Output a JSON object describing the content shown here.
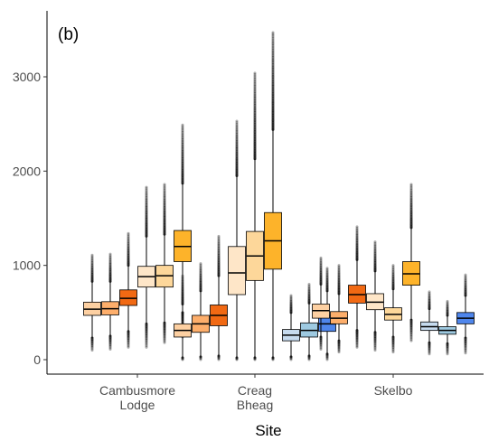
{
  "chart_data": {
    "type": "box",
    "panel_label": "(b)",
    "title": "",
    "xlabel": "Site",
    "ylabel": "",
    "ylim": [
      -80,
      3560
    ],
    "yticks": [
      0,
      1000,
      2000,
      3000
    ],
    "ytick_labels": [
      "0",
      "1000",
      "2000",
      "3000"
    ],
    "grid": false,
    "legend": "none",
    "categories": [
      {
        "label_lines": [
          "Cambusmore",
          "Lodge"
        ]
      },
      {
        "label_lines": [
          "Creag",
          "Bheag"
        ]
      },
      {
        "label_lines": [
          "Skelbo"
        ]
      }
    ],
    "groups": [
      {
        "site": "Cambusmore Lodge",
        "boxes": [
          {
            "color": "#fdd0a2",
            "whisker_low": 230,
            "q1": 470,
            "median": 535,
            "q3": 610,
            "whisker_high": 830,
            "out_low": 100,
            "out_high": 1110
          },
          {
            "color": "#fdae6b",
            "whisker_low": 250,
            "q1": 475,
            "median": 540,
            "q3": 615,
            "whisker_high": 830,
            "out_low": 110,
            "out_high": 1120
          },
          {
            "color": "#f16913",
            "whisker_low": 300,
            "q1": 575,
            "median": 650,
            "q3": 740,
            "whisker_high": 1000,
            "out_low": 130,
            "out_high": 1340
          },
          {
            "color": "#fee6c8",
            "whisker_low": 380,
            "q1": 770,
            "median": 880,
            "q3": 990,
            "whisker_high": 1310,
            "out_low": 130,
            "out_high": 1830
          },
          {
            "color": "#fdd79a",
            "whisker_low": 390,
            "q1": 770,
            "median": 890,
            "q3": 1000,
            "whisker_high": 1330,
            "out_low": 180,
            "out_high": 1860
          },
          {
            "color": "#fdb32a",
            "whisker_low": 500,
            "q1": 1040,
            "median": 1200,
            "q3": 1370,
            "whisker_high": 1870,
            "out_low": 240,
            "out_high": 2490
          }
        ]
      },
      {
        "site": "Creag Bheag",
        "boxes": [
          {
            "color": "#fdd0a2",
            "whisker_low": 20,
            "q1": 240,
            "median": 310,
            "q3": 380,
            "whisker_high": 590,
            "out_low": 0,
            "out_high": 890
          },
          {
            "color": "#fdae6b",
            "whisker_low": 30,
            "q1": 290,
            "median": 380,
            "q3": 470,
            "whisker_high": 730,
            "out_low": 0,
            "out_high": 1020
          },
          {
            "color": "#f16913",
            "whisker_low": 40,
            "q1": 360,
            "median": 470,
            "q3": 580,
            "whisker_high": 890,
            "out_low": 0,
            "out_high": 1310
          },
          {
            "color": "#fee6c8",
            "whisker_low": 20,
            "q1": 690,
            "median": 920,
            "q3": 1200,
            "whisker_high": 1950,
            "out_low": 0,
            "out_high": 2530
          },
          {
            "color": "#fdd79a",
            "whisker_low": 20,
            "q1": 840,
            "median": 1100,
            "q3": 1360,
            "whisker_high": 2130,
            "out_low": 0,
            "out_high": 3040
          },
          {
            "color": "#fdb32a",
            "whisker_low": 20,
            "q1": 960,
            "median": 1260,
            "q3": 1560,
            "whisker_high": 2440,
            "out_low": 0,
            "out_high": 3470
          },
          {
            "color": "#c6dbef",
            "whisker_low": 30,
            "q1": 200,
            "median": 260,
            "q3": 320,
            "whisker_high": 500,
            "out_low": 0,
            "out_high": 680
          },
          {
            "color": "#9ecae1",
            "whisker_low": 40,
            "q1": 240,
            "median": 310,
            "q3": 390,
            "whisker_high": 600,
            "out_low": 0,
            "out_high": 800
          },
          {
            "color": "#4f86ec",
            "whisker_low": 60,
            "q1": 300,
            "median": 380,
            "q3": 470,
            "whisker_high": 730,
            "out_low": 0,
            "out_high": 970
          }
        ]
      },
      {
        "site": "Skelbo",
        "boxes": [
          {
            "color": "#fdd0a2",
            "whisker_low": 240,
            "q1": 440,
            "median": 520,
            "q3": 590,
            "whisker_high": 800,
            "out_low": 110,
            "out_high": 1080
          },
          {
            "color": "#fdae6b",
            "whisker_low": 200,
            "q1": 380,
            "median": 440,
            "q3": 510,
            "whisker_high": 700,
            "out_low": 80,
            "out_high": 1000
          },
          {
            "color": "#f16913",
            "whisker_low": 310,
            "q1": 600,
            "median": 690,
            "q3": 790,
            "whisker_high": 1060,
            "out_low": 130,
            "out_high": 1410
          },
          {
            "color": "#fee6c8",
            "whisker_low": 290,
            "q1": 530,
            "median": 610,
            "q3": 700,
            "whisker_high": 940,
            "out_low": 100,
            "out_high": 1250
          },
          {
            "color": "#fdd79a",
            "whisker_low": 240,
            "q1": 420,
            "median": 480,
            "q3": 550,
            "whisker_high": 750,
            "out_low": 80,
            "out_high": 1000
          },
          {
            "color": "#fdb32a",
            "whisker_low": 420,
            "q1": 790,
            "median": 910,
            "q3": 1040,
            "whisker_high": 1400,
            "out_low": 200,
            "out_high": 1860
          },
          {
            "color": "#c6dbef",
            "whisker_low": 180,
            "q1": 310,
            "median": 350,
            "q3": 400,
            "whisker_high": 540,
            "out_low": 60,
            "out_high": 720
          },
          {
            "color": "#9ecae1",
            "whisker_low": 170,
            "q1": 270,
            "median": 310,
            "q3": 350,
            "whisker_high": 470,
            "out_low": 60,
            "out_high": 620
          },
          {
            "color": "#4f86ec",
            "whisker_low": 230,
            "q1": 380,
            "median": 440,
            "q3": 500,
            "whisker_high": 680,
            "out_low": 70,
            "out_high": 900
          }
        ]
      }
    ]
  }
}
